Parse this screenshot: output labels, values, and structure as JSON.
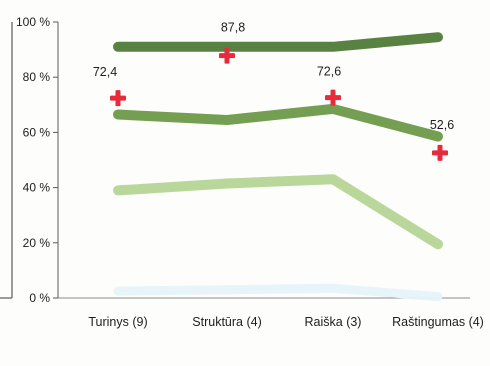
{
  "chart_data": {
    "type": "line",
    "categories": [
      "Turinys (9)",
      "Struktūra (4)",
      "Raiška (3)",
      "Raštingumas (4)"
    ],
    "y_tick_labels": [
      "0 %",
      "20 %",
      "40 %",
      "60 %",
      "80 %",
      "100 %"
    ],
    "ylim": [
      0,
      100
    ],
    "grid": false,
    "legend": "none",
    "series": [
      {
        "kind": "line",
        "values": [
          91,
          91,
          91,
          94.5
        ],
        "color": "#4f7a38"
      },
      {
        "kind": "line",
        "values": [
          66.5,
          64.5,
          68.5,
          58.5
        ],
        "color": "#6d9a49"
      },
      {
        "kind": "line",
        "values": [
          39,
          41.5,
          43,
          19.5
        ],
        "color": "#b6d596"
      },
      {
        "kind": "line",
        "values": [
          2.5,
          3,
          3.5,
          0.5
        ],
        "color": "#e6f3fa"
      },
      {
        "kind": "marker",
        "marker": "cross",
        "values": [
          72.4,
          87.8,
          72.6,
          52.6
        ],
        "labels": [
          "72,4",
          "87,8",
          "72,6",
          "52,6"
        ],
        "color": "#e52b3c"
      }
    ]
  }
}
